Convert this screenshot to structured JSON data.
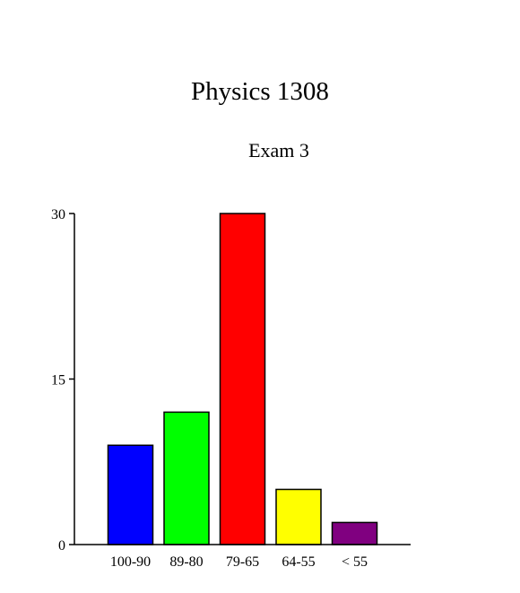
{
  "chart_data": {
    "type": "bar",
    "title": "Physics 1308",
    "subtitle": "Exam 3",
    "xlabel": "",
    "ylabel": "",
    "categories": [
      "100-90",
      "89-80",
      "79-65",
      "64-55",
      "< 55"
    ],
    "values": [
      9,
      12,
      30,
      5,
      2
    ],
    "colors": [
      "#0000ff",
      "#00ff00",
      "#ff0000",
      "#ffff00",
      "#800080"
    ],
    "ylim": [
      0,
      30
    ],
    "yticks": [
      0,
      15,
      30
    ],
    "ytick_labels": [
      "0",
      "15",
      "30"
    ],
    "grid": false,
    "legend": "none"
  }
}
